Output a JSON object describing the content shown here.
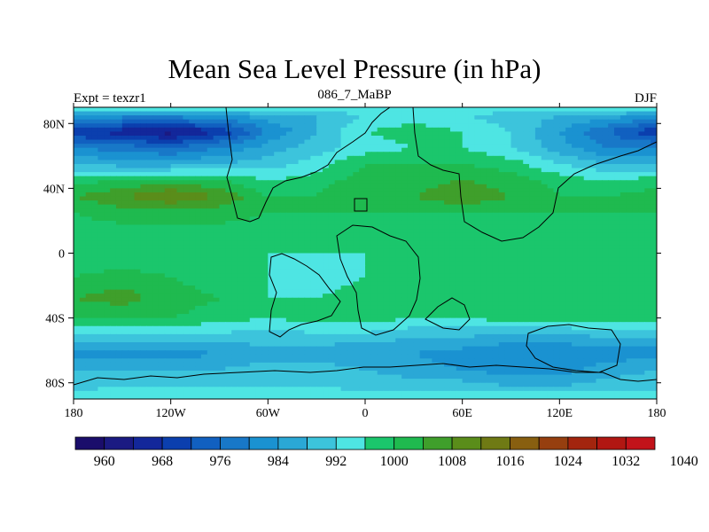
{
  "chart_data": {
    "type": "heatmap",
    "title": "Mean Sea Level Pressure (in hPa)",
    "subtitle_left": "Expt = texzr1",
    "subtitle_center": "086_7_MaBP",
    "subtitle_right": "DJF",
    "x_ticks": [
      {
        "value": -180,
        "label": "180"
      },
      {
        "value": -120,
        "label": "120W"
      },
      {
        "value": -60,
        "label": "60W"
      },
      {
        "value": 0,
        "label": "0"
      },
      {
        "value": 60,
        "label": "60E"
      },
      {
        "value": 120,
        "label": "120E"
      },
      {
        "value": 180,
        "label": "180"
      }
    ],
    "y_ticks": [
      {
        "value": 80,
        "label": "80N"
      },
      {
        "value": 40,
        "label": "40N"
      },
      {
        "value": 0,
        "label": "0"
      },
      {
        "value": -40,
        "label": "40S"
      },
      {
        "value": -80,
        "label": "80S"
      }
    ],
    "xlim": [
      -180,
      180
    ],
    "ylim": [
      -90,
      90
    ],
    "levels": [
      960,
      964,
      968,
      972,
      976,
      980,
      984,
      988,
      992,
      996,
      1000,
      1004,
      1008,
      1012,
      1016,
      1020,
      1024,
      1028,
      1032,
      1036,
      1040
    ],
    "colorbar_labels": [
      960,
      968,
      976,
      984,
      992,
      1000,
      1008,
      1016,
      1024,
      1032,
      1040
    ],
    "colors": [
      "#1a0d6b",
      "#1b1a82",
      "#13279a",
      "#0b3fae",
      "#1160c0",
      "#1878c8",
      "#1a92d1",
      "#2aa8d6",
      "#3cc4dc",
      "#4ee5e3",
      "#1bc66c",
      "#1fba4f",
      "#3f9f2b",
      "#5a8d1a",
      "#6f7a14",
      "#885f10",
      "#963f0f",
      "#a3250e",
      "#b11712",
      "#c2131a"
    ],
    "field_rows": [
      {
        "lat": 90,
        "values": [
          1000,
          1000,
          1000,
          1000,
          1000,
          1000,
          1000,
          1000,
          1000,
          1000,
          1000,
          1000,
          1000
        ]
      },
      {
        "lat": 85,
        "values": [
          988,
          986,
          986,
          988,
          990,
          992,
          996,
          998,
          996,
          994,
          992,
          990,
          988
        ]
      },
      {
        "lat": 75,
        "values": [
          972,
          970,
          966,
          972,
          984,
          992,
          1000,
          1002,
          1000,
          996,
          988,
          980,
          972
        ]
      },
      {
        "lat": 65,
        "values": [
          984,
          982,
          980,
          984,
          990,
          994,
          998,
          1000,
          1000,
          996,
          990,
          984,
          984
        ]
      },
      {
        "lat": 55,
        "values": [
          992,
          990,
          990,
          992,
          994,
          998,
          1004,
          1004,
          1004,
          1002,
          996,
          992,
          992
        ]
      },
      {
        "lat": 45,
        "values": [
          1002,
          1004,
          1006,
          1004,
          1000,
          1002,
          1006,
          1006,
          1008,
          1006,
          1002,
          1000,
          1002
        ]
      },
      {
        "lat": 35,
        "values": [
          1008,
          1012,
          1016,
          1012,
          1004,
          1004,
          1008,
          1008,
          1012,
          1008,
          1004,
          1004,
          1006
        ]
      },
      {
        "lat": 25,
        "values": [
          1004,
          1006,
          1006,
          1006,
          1004,
          1004,
          1004,
          1004,
          1004,
          1004,
          1004,
          1004,
          1004
        ]
      },
      {
        "lat": 12,
        "values": [
          1002,
          1002,
          1002,
          1002,
          1002,
          1002,
          1002,
          1002,
          1002,
          1002,
          1002,
          1002,
          1002
        ]
      },
      {
        "lat": 0,
        "values": [
          1000,
          1000,
          1000,
          1000,
          1000,
          1000,
          1000,
          1000,
          1000,
          1000,
          1000,
          1000,
          1000
        ]
      },
      {
        "lat": -15,
        "values": [
          1004,
          1006,
          1004,
          1002,
          1000,
          998,
          1000,
          1000,
          1000,
          1000,
          1002,
          1002,
          1002
        ]
      },
      {
        "lat": -28,
        "values": [
          1008,
          1010,
          1006,
          1004,
          1000,
          1000,
          1002,
          1000,
          1000,
          1000,
          1004,
          1004,
          1004
        ]
      },
      {
        "lat": -40,
        "values": [
          1004,
          1004,
          1004,
          1002,
          1000,
          1002,
          1002,
          1000,
          1000,
          1002,
          1002,
          1002,
          1002
        ]
      },
      {
        "lat": -52,
        "values": [
          994,
          994,
          994,
          994,
          994,
          994,
          994,
          992,
          992,
          990,
          990,
          992,
          992
        ]
      },
      {
        "lat": -62,
        "values": [
          986,
          986,
          986,
          988,
          990,
          990,
          988,
          988,
          986,
          984,
          984,
          986,
          986
        ]
      },
      {
        "lat": -72,
        "values": [
          992,
          992,
          992,
          992,
          994,
          994,
          992,
          990,
          988,
          986,
          986,
          990,
          992
        ]
      },
      {
        "lat": -82,
        "values": [
          994,
          996,
          996,
          996,
          996,
          996,
          994,
          994,
          994,
          992,
          992,
          994,
          994
        ]
      },
      {
        "lat": -90,
        "values": [
          1000,
          1000,
          1000,
          1000,
          1000,
          1000,
          1000,
          1000,
          1000,
          1000,
          1000,
          1000,
          1000
        ]
      }
    ],
    "field_lons": [
      -180,
      -150,
      -120,
      -90,
      -60,
      -30,
      0,
      30,
      60,
      90,
      120,
      150,
      180
    ]
  }
}
